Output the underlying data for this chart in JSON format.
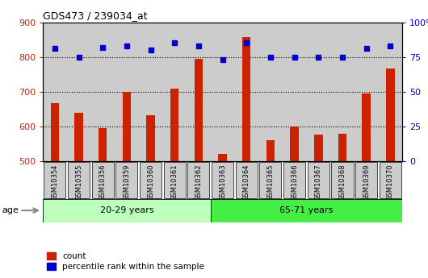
{
  "title": "GDS473 / 239034_at",
  "samples": [
    "GSM10354",
    "GSM10355",
    "GSM10356",
    "GSM10359",
    "GSM10360",
    "GSM10361",
    "GSM10362",
    "GSM10363",
    "GSM10364",
    "GSM10365",
    "GSM10366",
    "GSM10367",
    "GSM10368",
    "GSM10369",
    "GSM10370"
  ],
  "counts": [
    668,
    640,
    595,
    700,
    633,
    710,
    795,
    522,
    858,
    560,
    600,
    577,
    578,
    695,
    768
  ],
  "percentiles": [
    81,
    75,
    82,
    83,
    80,
    85,
    83,
    73,
    85,
    75,
    75,
    75,
    75,
    81,
    83
  ],
  "groups": [
    {
      "label": "20-29 years",
      "n_samples": 7,
      "color": "#bbffbb"
    },
    {
      "label": "65-71 years",
      "n_samples": 8,
      "color": "#44ee44"
    }
  ],
  "ylim_left": [
    500,
    900
  ],
  "ylim_right": [
    0,
    100
  ],
  "yticks_left": [
    500,
    600,
    700,
    800,
    900
  ],
  "yticks_right": [
    0,
    25,
    50,
    75,
    100
  ],
  "bar_color": "#cc2200",
  "dot_color": "#0000cc",
  "bar_width": 0.35,
  "plot_bg": "#cccccc",
  "xtick_bg": "#cccccc",
  "age_label": "age"
}
